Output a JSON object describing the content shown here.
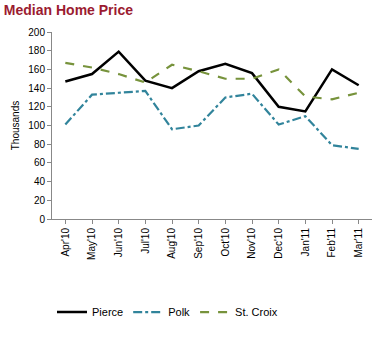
{
  "chart_data": {
    "type": "line",
    "title": "Median Home Price",
    "y_label": "Thousands",
    "categories": [
      "Apr'10",
      "May'10",
      "Jun'10",
      "Jul'10",
      "Aug'10",
      "Sep'10",
      "Oct'10",
      "Nov'10",
      "Dec'10",
      "Jan'11",
      "Feb'11",
      "Mar'11"
    ],
    "series": [
      {
        "name": "Pierce",
        "color": "#000000",
        "line_style": "solid",
        "values": [
          147,
          155,
          179,
          148,
          140,
          158,
          166,
          156,
          120,
          115,
          160,
          143
        ]
      },
      {
        "name": "Polk",
        "color": "#31849B",
        "line_style": "dashdot",
        "values": [
          101,
          133,
          135,
          137,
          96,
          100,
          130,
          134,
          101,
          110,
          79,
          75
        ]
      },
      {
        "name": "St. Croix",
        "color": "#77933C",
        "line_style": "dash",
        "values": [
          167,
          162,
          155,
          146,
          165,
          158,
          150,
          150,
          160,
          131,
          128,
          135
        ]
      }
    ],
    "ylim": [
      0,
      200
    ],
    "yticks": [
      0,
      20,
      40,
      60,
      80,
      100,
      120,
      140,
      160,
      180,
      200
    ],
    "grid": false,
    "legend": "bottom"
  }
}
